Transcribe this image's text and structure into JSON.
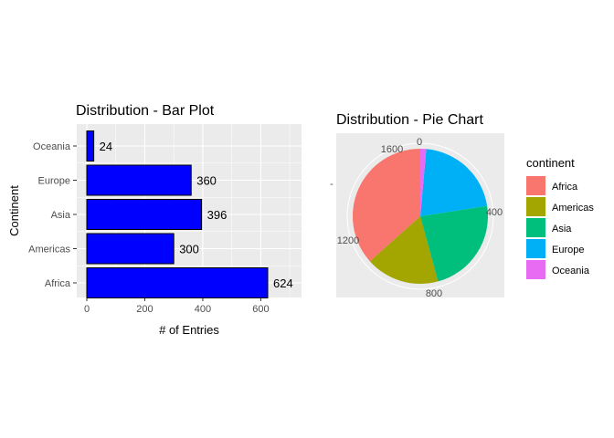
{
  "chart_data": [
    {
      "type": "bar",
      "orientation": "horizontal",
      "title": "Distribution - Bar Plot",
      "xlabel": "# of Entries",
      "ylabel": "Continent",
      "categories": [
        "Africa",
        "Americas",
        "Asia",
        "Europe",
        "Oceania"
      ],
      "values": [
        624,
        300,
        396,
        360,
        24
      ],
      "xlim": [
        0,
        730
      ],
      "xticks": [
        0,
        200,
        400,
        600
      ],
      "bar_color": "#0000ff",
      "bar_edge_color": "#000000",
      "panel_background": "#ebebeb",
      "grid": true
    },
    {
      "type": "pie",
      "title": "Distribution - Pie Chart",
      "categories": [
        "Africa",
        "Americas",
        "Asia",
        "Europe",
        "Oceania"
      ],
      "values": [
        624,
        300,
        396,
        360,
        24
      ],
      "colors": [
        "#f8766d",
        "#a3a500",
        "#00bf7d",
        "#00b0f6",
        "#e76bf3"
      ],
      "radial_ticks": [
        "0",
        "400",
        "800",
        "1200",
        "1600"
      ],
      "stray_axis_mark": "-",
      "panel_background": "#ebebeb",
      "legend": {
        "title": "continent",
        "placement": "right",
        "entries": [
          "Africa",
          "Americas",
          "Asia",
          "Europe",
          "Oceania"
        ]
      }
    }
  ]
}
